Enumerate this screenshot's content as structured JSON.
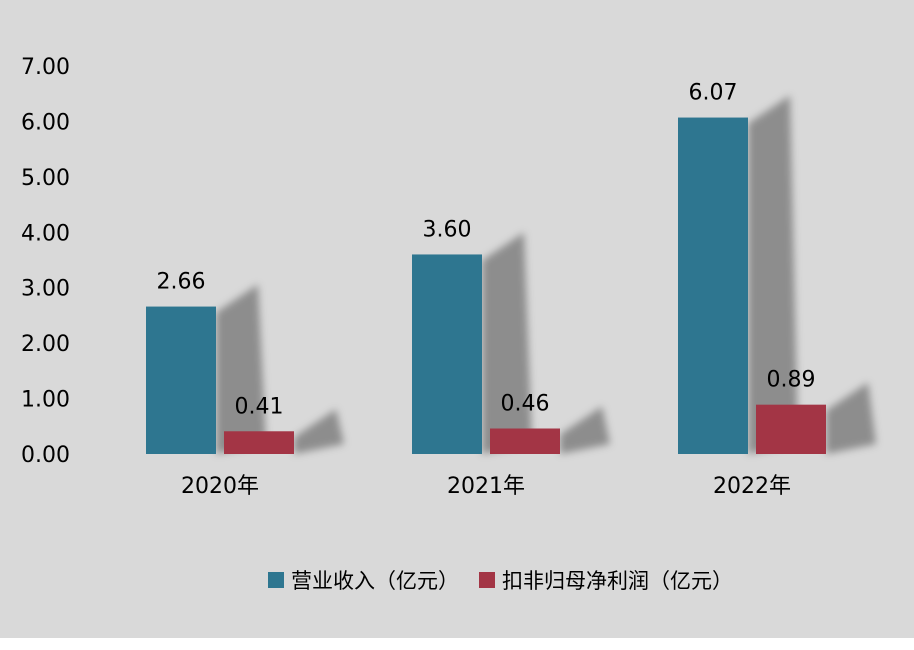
{
  "chart_data": {
    "type": "bar",
    "categories": [
      "2020年",
      "2021年",
      "2022年"
    ],
    "series": [
      {
        "name": "营业收入（亿元）",
        "values": [
          2.66,
          3.6,
          6.07
        ],
        "labels": [
          "2.66",
          "3.60",
          "6.07"
        ],
        "color": "#2e7690"
      },
      {
        "name": "扣非归母净利润（亿元）",
        "values": [
          0.41,
          0.46,
          0.89
        ],
        "labels": [
          "0.41",
          "0.46",
          "0.89"
        ],
        "color": "#a33545"
      }
    ],
    "y_ticks": [
      "0.00",
      "1.00",
      "2.00",
      "3.00",
      "4.00",
      "5.00",
      "6.00",
      "7.00"
    ],
    "ylim": [
      0,
      7
    ],
    "grid": false,
    "legend_position": "bottom"
  },
  "background_color": "#d9d9d9"
}
